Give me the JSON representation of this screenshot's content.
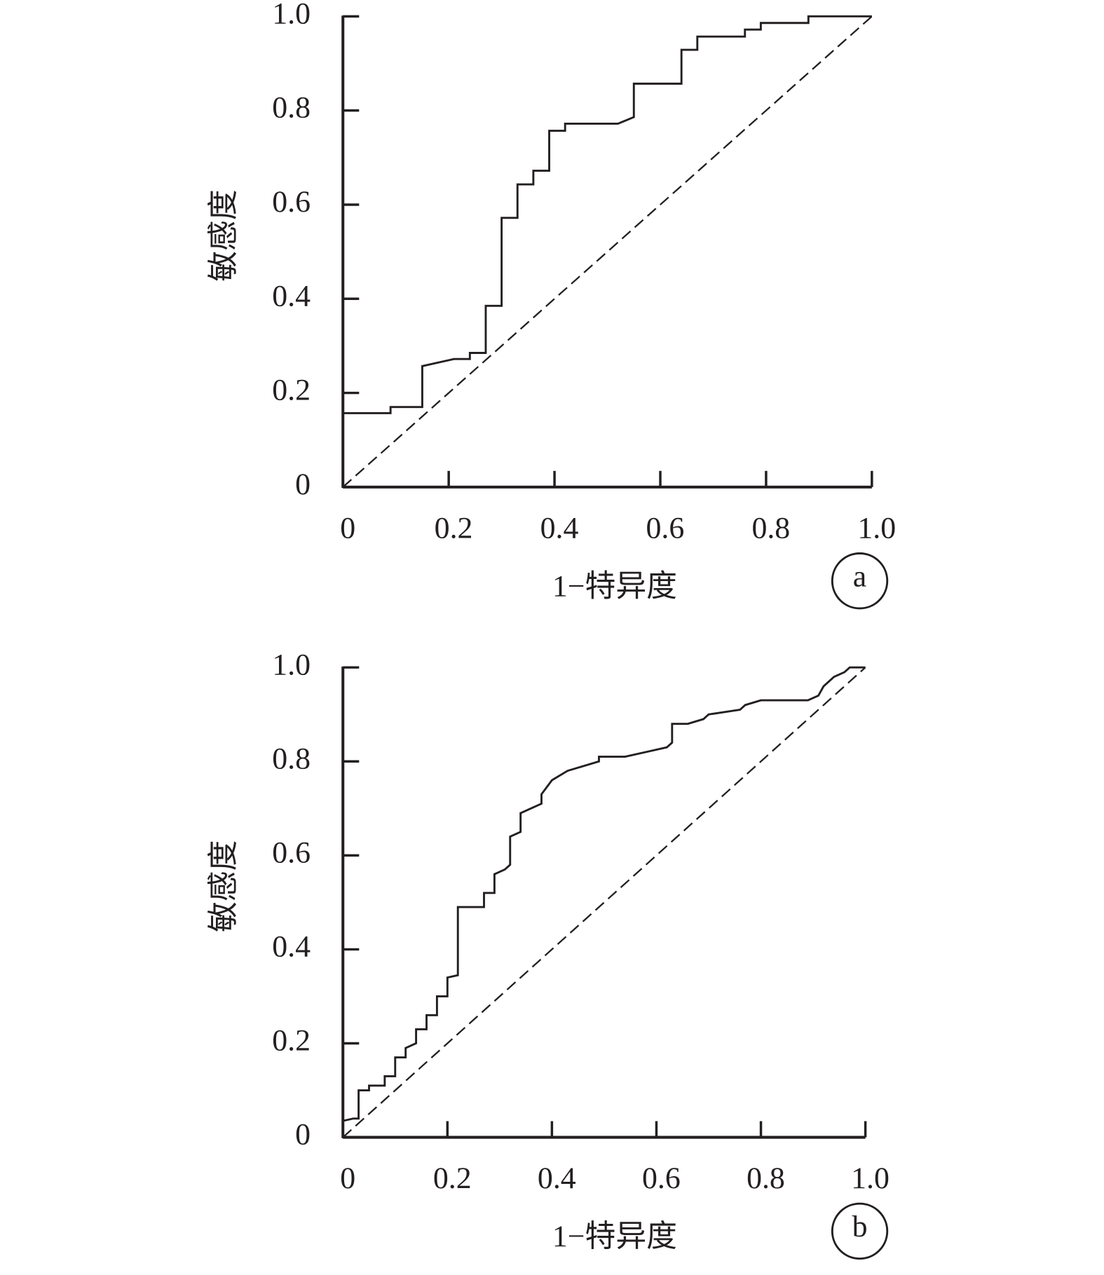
{
  "chart_data": [
    {
      "type": "line",
      "label": "a",
      "x_label": "1−特异度",
      "y_label": "敏感度",
      "xlim": [
        0,
        1
      ],
      "ylim": [
        0,
        1
      ],
      "xticks": [
        0,
        0.2,
        0.4,
        0.6,
        0.8,
        {
          "value": 1,
          "label": "1.0"
        }
      ],
      "yticks": [
        0,
        0.2,
        0.4,
        0.6,
        0.8,
        {
          "value": 1,
          "label": "1.0"
        }
      ],
      "series": [
        {
          "color": "#231f20",
          "x": [
            0,
            0.09,
            0.09,
            0.15,
            0.15,
            0.21,
            0.24,
            0.24,
            0.27,
            0.27,
            0.3,
            0.3,
            0.33,
            0.33,
            0.36,
            0.36,
            0.39,
            0.39,
            0.42,
            0.42,
            0.52,
            0.55,
            0.55,
            0.64,
            0.64,
            0.67,
            0.67,
            0.76,
            0.76,
            0.79,
            0.79,
            0.88,
            0.88,
            1
          ],
          "values": [
            0.157,
            0.157,
            0.17,
            0.17,
            0.257,
            0.272,
            0.272,
            0.285,
            0.285,
            0.385,
            0.385,
            0.572,
            0.572,
            0.643,
            0.643,
            0.672,
            0.672,
            0.757,
            0.757,
            0.772,
            0.772,
            0.786,
            0.857,
            0.857,
            0.929,
            0.929,
            0.957,
            0.957,
            0.972,
            0.972,
            0.986,
            0.986,
            1,
            1
          ]
        },
        {
          "color": "#231f20",
          "dashed": true,
          "x": [
            0,
            1
          ],
          "values": [
            0,
            1
          ]
        }
      ]
    },
    {
      "type": "line",
      "label": "b",
      "x_label": "1−特异度",
      "y_label": "敏感度",
      "xlim": [
        0,
        1
      ],
      "ylim": [
        0,
        1
      ],
      "xticks": [
        0,
        0.2,
        0.4,
        0.6,
        0.8,
        {
          "value": 1,
          "label": "1.0"
        }
      ],
      "yticks": [
        0,
        0.2,
        0.4,
        0.6,
        0.8,
        {
          "value": 1,
          "label": "1.0"
        }
      ],
      "series": [
        {
          "color": "#231f20",
          "x": [
            0,
            0.02,
            0.03,
            0.03,
            0.05,
            0.05,
            0.08,
            0.08,
            0.1,
            0.1,
            0.12,
            0.12,
            0.14,
            0.14,
            0.16,
            0.16,
            0.18,
            0.18,
            0.2,
            0.2,
            0.22,
            0.22,
            0.27,
            0.27,
            0.29,
            0.29,
            0.31,
            0.32,
            0.32,
            0.34,
            0.34,
            0.36,
            0.38,
            0.38,
            0.4,
            0.43,
            0.46,
            0.49,
            0.49,
            0.54,
            0.58,
            0.62,
            0.63,
            0.63,
            0.66,
            0.69,
            0.7,
            0.76,
            0.77,
            0.8,
            0.89,
            0.91,
            0.92,
            0.93,
            0.94,
            0.96,
            0.97,
            1
          ],
          "values": [
            0.035,
            0.04,
            0.04,
            0.1,
            0.1,
            0.11,
            0.11,
            0.13,
            0.13,
            0.17,
            0.17,
            0.19,
            0.2,
            0.23,
            0.23,
            0.26,
            0.26,
            0.3,
            0.3,
            0.34,
            0.345,
            0.49,
            0.49,
            0.52,
            0.52,
            0.56,
            0.57,
            0.58,
            0.64,
            0.65,
            0.69,
            0.7,
            0.71,
            0.73,
            0.76,
            0.78,
            0.79,
            0.8,
            0.81,
            0.81,
            0.82,
            0.83,
            0.84,
            0.88,
            0.88,
            0.89,
            0.9,
            0.91,
            0.92,
            0.93,
            0.93,
            0.94,
            0.96,
            0.97,
            0.98,
            0.99,
            1,
            1
          ]
        },
        {
          "color": "#231f20",
          "dashed": true,
          "x": [
            0,
            1
          ],
          "values": [
            0,
            1
          ]
        }
      ]
    }
  ]
}
